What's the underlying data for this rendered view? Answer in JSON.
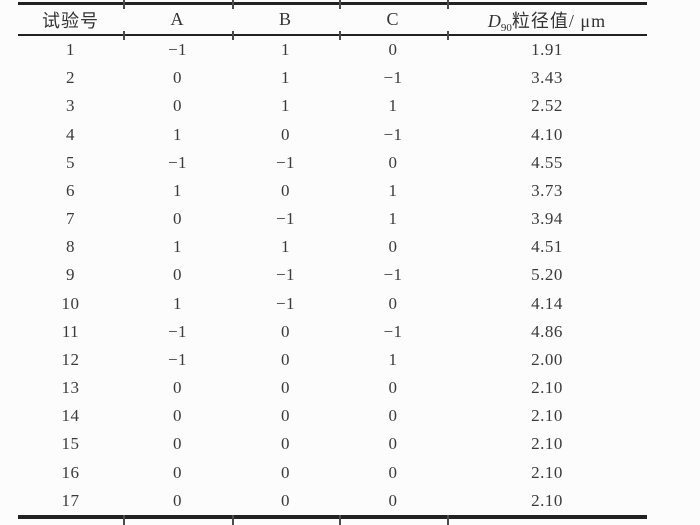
{
  "page": {
    "background_color": "#fcfcfc",
    "text_color": "#3a3a3a",
    "rule_color": "#222222"
  },
  "table": {
    "header": {
      "col_test_no": "试验号",
      "col_factor_a": "A",
      "col_factor_b": "B",
      "col_factor_c": "C",
      "col_d90": {
        "symbol": "D",
        "subscript": "90",
        "label": "粒径值/ μm"
      }
    },
    "rows": [
      [
        "1",
        "−1",
        "1",
        "0",
        "1.91"
      ],
      [
        "2",
        "0",
        "1",
        "−1",
        "3.43"
      ],
      [
        "3",
        "0",
        "1",
        "1",
        "2.52"
      ],
      [
        "4",
        "1",
        "0",
        "−1",
        "4.10"
      ],
      [
        "5",
        "−1",
        "−1",
        "0",
        "4.55"
      ],
      [
        "6",
        "1",
        "0",
        "1",
        "3.73"
      ],
      [
        "7",
        "0",
        "−1",
        "1",
        "3.94"
      ],
      [
        "8",
        "1",
        "1",
        "0",
        "4.51"
      ],
      [
        "9",
        "0",
        "−1",
        "−1",
        "5.20"
      ],
      [
        "10",
        "1",
        "−1",
        "0",
        "4.14"
      ],
      [
        "11",
        "−1",
        "0",
        "−1",
        "4.86"
      ],
      [
        "12",
        "−1",
        "0",
        "1",
        "2.00"
      ],
      [
        "13",
        "0",
        "0",
        "0",
        "2.10"
      ],
      [
        "14",
        "0",
        "0",
        "0",
        "2.10"
      ],
      [
        "15",
        "0",
        "0",
        "0",
        "2.10"
      ],
      [
        "16",
        "0",
        "0",
        "0",
        "2.10"
      ],
      [
        "17",
        "0",
        "0",
        "0",
        "2.10"
      ]
    ]
  }
}
